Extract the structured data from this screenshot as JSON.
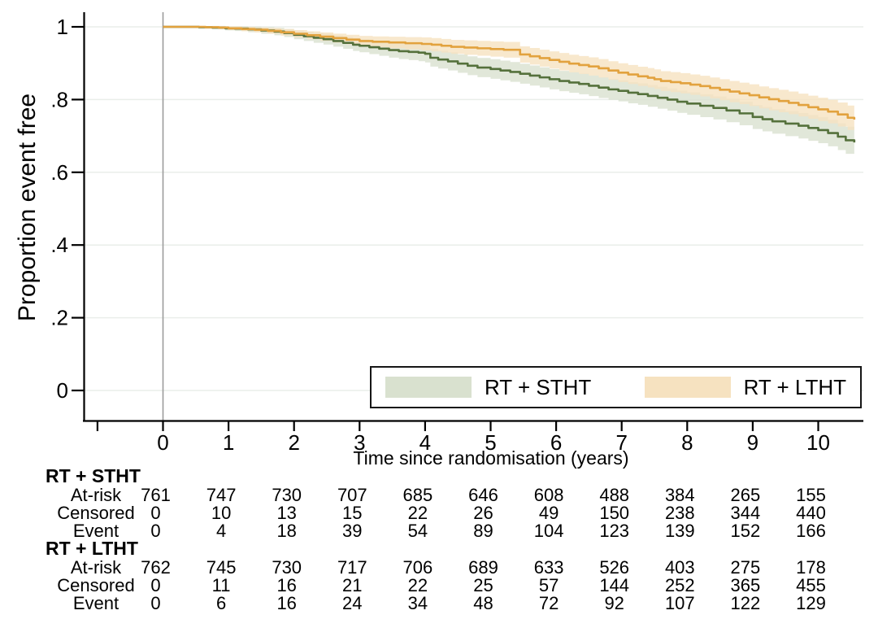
{
  "chart_data": {
    "type": "line",
    "subtype": "kaplan-meier-step-with-ci-bands",
    "title": "",
    "xlabel": "Time since randomisation (years)",
    "ylabel": "Proportion event free",
    "xlim": [
      -1.2,
      10.7
    ],
    "ylim": [
      0,
      1.04
    ],
    "grid": "horizontal",
    "grid_color": "#eaeeea",
    "axis_color": "#000000",
    "reference_line": {
      "x": 0,
      "color": "#9b9b9b"
    },
    "x_ticks": [
      {
        "t": -1,
        "label": ""
      },
      {
        "t": 0,
        "label": "0"
      },
      {
        "t": 1,
        "label": "1"
      },
      {
        "t": 2,
        "label": "2"
      },
      {
        "t": 3,
        "label": "3"
      },
      {
        "t": 4,
        "label": "4"
      },
      {
        "t": 5,
        "label": "5"
      },
      {
        "t": 6,
        "label": "6"
      },
      {
        "t": 7,
        "label": "7"
      },
      {
        "t": 8,
        "label": "8"
      },
      {
        "t": 9,
        "label": "9"
      },
      {
        "t": 10,
        "label": "10"
      }
    ],
    "y_ticks": [
      {
        "v": 1,
        "label": "1"
      },
      {
        "v": 0.8,
        "label": ".8"
      },
      {
        "v": 0.6,
        "label": ".6"
      },
      {
        "v": 0.4,
        "label": ".4"
      },
      {
        "v": 0.2,
        "label": ".2"
      },
      {
        "v": 0,
        "label": "0"
      }
    ],
    "legend_position": "inside-bottom-right",
    "series": [
      {
        "name": "RT + STHT",
        "line_color": "#55713c",
        "band_color": "#d9e1cf",
        "points": [
          [
            0,
            1.0
          ],
          [
            0.55,
            0.999
          ],
          [
            0.75,
            0.998
          ],
          [
            0.95,
            0.996
          ],
          [
            1.1,
            0.995
          ],
          [
            1.3,
            0.993
          ],
          [
            1.5,
            0.99
          ],
          [
            1.7,
            0.987
          ],
          [
            1.85,
            0.983
          ],
          [
            2.0,
            0.978
          ],
          [
            2.15,
            0.974
          ],
          [
            2.3,
            0.97
          ],
          [
            2.45,
            0.966
          ],
          [
            2.6,
            0.961
          ],
          [
            2.75,
            0.956
          ],
          [
            2.9,
            0.951
          ],
          [
            3.0,
            0.948
          ],
          [
            3.15,
            0.944
          ],
          [
            3.3,
            0.94
          ],
          [
            3.45,
            0.936
          ],
          [
            3.6,
            0.933
          ],
          [
            3.75,
            0.931
          ],
          [
            3.9,
            0.929
          ],
          [
            4.0,
            0.926
          ],
          [
            4.08,
            0.915
          ],
          [
            4.2,
            0.91
          ],
          [
            4.35,
            0.905
          ],
          [
            4.5,
            0.899
          ],
          [
            4.65,
            0.893
          ],
          [
            4.8,
            0.888
          ],
          [
            5.0,
            0.884
          ],
          [
            5.15,
            0.88
          ],
          [
            5.3,
            0.876
          ],
          [
            5.45,
            0.871
          ],
          [
            5.6,
            0.866
          ],
          [
            5.75,
            0.861
          ],
          [
            5.9,
            0.856
          ],
          [
            6.05,
            0.851
          ],
          [
            6.2,
            0.847
          ],
          [
            6.35,
            0.843
          ],
          [
            6.5,
            0.838
          ],
          [
            6.65,
            0.833
          ],
          [
            6.8,
            0.828
          ],
          [
            6.95,
            0.824
          ],
          [
            7.1,
            0.819
          ],
          [
            7.25,
            0.815
          ],
          [
            7.4,
            0.81
          ],
          [
            7.55,
            0.805
          ],
          [
            7.7,
            0.8
          ],
          [
            7.85,
            0.794
          ],
          [
            8.0,
            0.789
          ],
          [
            8.2,
            0.783
          ],
          [
            8.4,
            0.777
          ],
          [
            8.6,
            0.77
          ],
          [
            8.8,
            0.762
          ],
          [
            9.0,
            0.752
          ],
          [
            9.15,
            0.746
          ],
          [
            9.3,
            0.74
          ],
          [
            9.5,
            0.734
          ],
          [
            9.7,
            0.728
          ],
          [
            9.85,
            0.722
          ],
          [
            10.0,
            0.716
          ],
          [
            10.15,
            0.708
          ],
          [
            10.3,
            0.698
          ],
          [
            10.42,
            0.688
          ],
          [
            10.55,
            0.682
          ]
        ],
        "ci_halfwidth": [
          [
            0,
            0.001
          ],
          [
            0.5,
            0.003
          ],
          [
            1,
            0.006
          ],
          [
            2,
            0.012
          ],
          [
            3,
            0.018
          ],
          [
            4,
            0.024
          ],
          [
            5,
            0.027
          ],
          [
            6,
            0.028
          ],
          [
            7,
            0.029
          ],
          [
            8,
            0.031
          ],
          [
            9,
            0.033
          ],
          [
            10,
            0.036
          ],
          [
            10.6,
            0.038
          ]
        ]
      },
      {
        "name": "RT + LTHT",
        "line_color": "#e2a23e",
        "band_color": "#f6e2c0",
        "points": [
          [
            0,
            1.0
          ],
          [
            0.65,
            0.999
          ],
          [
            0.85,
            0.998
          ],
          [
            1.0,
            0.996
          ],
          [
            1.2,
            0.994
          ],
          [
            1.4,
            0.992
          ],
          [
            1.6,
            0.989
          ],
          [
            1.8,
            0.985
          ],
          [
            2.0,
            0.981
          ],
          [
            2.2,
            0.977
          ],
          [
            2.4,
            0.973
          ],
          [
            2.6,
            0.969
          ],
          [
            2.8,
            0.965
          ],
          [
            3.0,
            0.961
          ],
          [
            3.2,
            0.959
          ],
          [
            3.45,
            0.957
          ],
          [
            3.7,
            0.955
          ],
          [
            3.95,
            0.953
          ],
          [
            4.1,
            0.951
          ],
          [
            4.25,
            0.948
          ],
          [
            4.4,
            0.945
          ],
          [
            4.6,
            0.943
          ],
          [
            4.8,
            0.941
          ],
          [
            5.0,
            0.939
          ],
          [
            5.2,
            0.937
          ],
          [
            5.45,
            0.924
          ],
          [
            5.6,
            0.919
          ],
          [
            5.75,
            0.914
          ],
          [
            5.9,
            0.909
          ],
          [
            6.05,
            0.904
          ],
          [
            6.2,
            0.899
          ],
          [
            6.35,
            0.895
          ],
          [
            6.5,
            0.891
          ],
          [
            6.65,
            0.886
          ],
          [
            6.8,
            0.88
          ],
          [
            6.95,
            0.874
          ],
          [
            7.1,
            0.869
          ],
          [
            7.25,
            0.864
          ],
          [
            7.4,
            0.86
          ],
          [
            7.5,
            0.856
          ],
          [
            7.6,
            0.851
          ],
          [
            7.75,
            0.848
          ],
          [
            7.9,
            0.845
          ],
          [
            8.05,
            0.841
          ],
          [
            8.2,
            0.837
          ],
          [
            8.35,
            0.832
          ],
          [
            8.5,
            0.827
          ],
          [
            8.65,
            0.822
          ],
          [
            8.8,
            0.817
          ],
          [
            8.95,
            0.812
          ],
          [
            9.1,
            0.806
          ],
          [
            9.25,
            0.801
          ],
          [
            9.4,
            0.796
          ],
          [
            9.55,
            0.791
          ],
          [
            9.7,
            0.785
          ],
          [
            9.85,
            0.779
          ],
          [
            10.0,
            0.773
          ],
          [
            10.15,
            0.767
          ],
          [
            10.3,
            0.759
          ],
          [
            10.45,
            0.75
          ],
          [
            10.55,
            0.745
          ]
        ],
        "ci_halfwidth": [
          [
            0,
            0.001
          ],
          [
            0.5,
            0.002
          ],
          [
            1,
            0.005
          ],
          [
            2,
            0.01
          ],
          [
            3,
            0.014
          ],
          [
            4,
            0.018
          ],
          [
            5,
            0.021
          ],
          [
            6,
            0.024
          ],
          [
            7,
            0.026
          ],
          [
            8,
            0.028
          ],
          [
            9,
            0.03
          ],
          [
            10,
            0.032
          ],
          [
            10.6,
            0.034
          ]
        ]
      }
    ]
  },
  "legend": {
    "items": [
      {
        "label": "RT + STHT",
        "color": "#d9e1cf"
      },
      {
        "label": "RT + LTHT",
        "color": "#f6e2c0"
      }
    ]
  },
  "risk_table": {
    "time_points": [
      0,
      1,
      2,
      3,
      4,
      5,
      6,
      7,
      8,
      9,
      10
    ],
    "groups": [
      {
        "name": "RT + STHT",
        "rows": [
          {
            "label": "At-risk",
            "values": [
              761,
              747,
              730,
              707,
              685,
              646,
              608,
              488,
              384,
              265,
              155
            ]
          },
          {
            "label": "Censored",
            "values": [
              0,
              10,
              13,
              15,
              22,
              26,
              49,
              150,
              238,
              344,
              440
            ]
          },
          {
            "label": "Event",
            "values": [
              0,
              4,
              18,
              39,
              54,
              89,
              104,
              123,
              139,
              152,
              166
            ]
          }
        ]
      },
      {
        "name": "RT + LTHT",
        "rows": [
          {
            "label": "At-risk",
            "values": [
              762,
              745,
              730,
              717,
              706,
              689,
              633,
              526,
              403,
              275,
              178
            ]
          },
          {
            "label": "Censored",
            "values": [
              0,
              11,
              16,
              21,
              22,
              25,
              57,
              144,
              252,
              365,
              455
            ]
          },
          {
            "label": "Event",
            "values": [
              0,
              6,
              16,
              24,
              34,
              48,
              72,
              92,
              107,
              122,
              129
            ]
          }
        ]
      }
    ]
  }
}
